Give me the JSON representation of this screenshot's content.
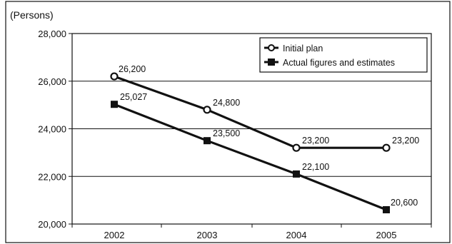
{
  "chart_data": {
    "type": "line",
    "unit_label": "(Persons)",
    "categories": [
      "2002",
      "2003",
      "2004",
      "2005"
    ],
    "ylim": [
      20000,
      28000
    ],
    "y_ticks": [
      20000,
      22000,
      24000,
      26000,
      28000
    ],
    "y_tick_labels": [
      "20,000",
      "22,000",
      "24,000",
      "26,000",
      "28,000"
    ],
    "grid": true,
    "legend_position": "top-right",
    "series": [
      {
        "name": "Initial plan",
        "marker": "circle",
        "color": "#111111",
        "values": [
          26200,
          24800,
          23200,
          23200
        ],
        "labels": [
          "26,200",
          "24,800",
          "23,200",
          "23,200"
        ]
      },
      {
        "name": "Actual figures and estimates",
        "marker": "square",
        "color": "#111111",
        "values": [
          25027,
          23500,
          22100,
          20600
        ],
        "labels": [
          "25,027",
          "23,500",
          "22,100",
          "20,600"
        ]
      }
    ]
  }
}
